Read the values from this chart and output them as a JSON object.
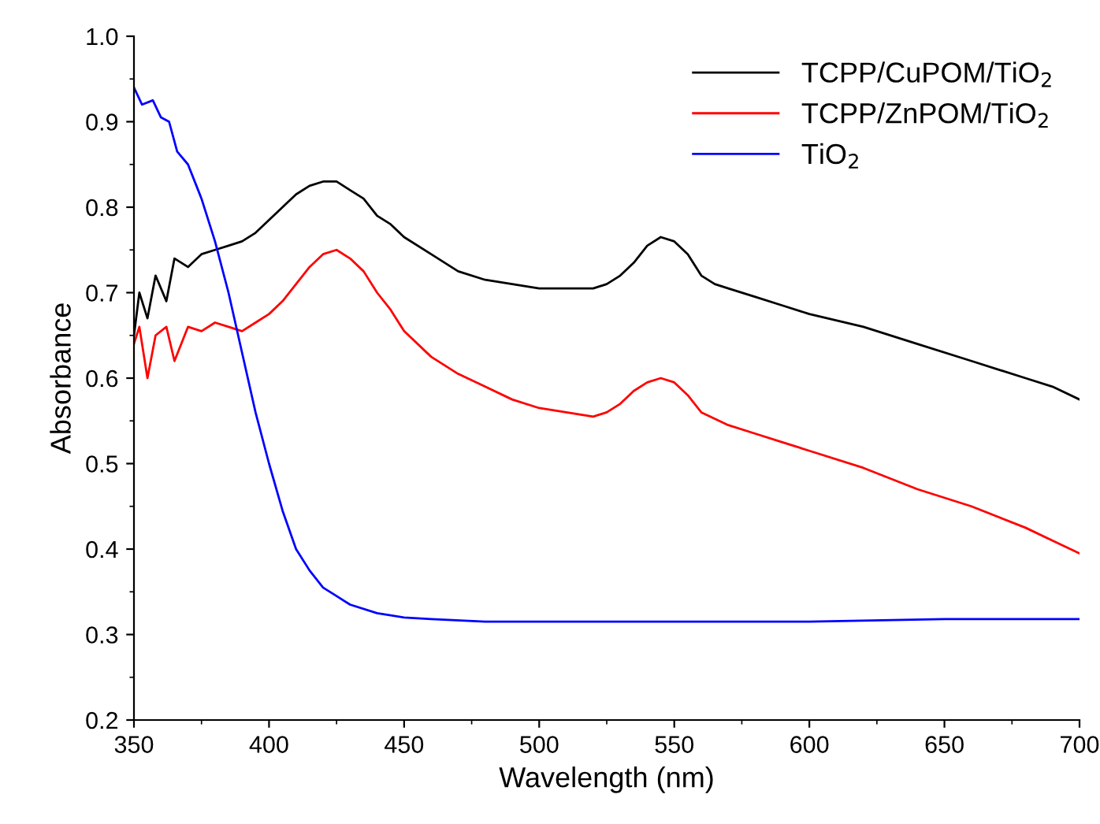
{
  "chart_data": {
    "type": "line",
    "xlabel": "Wavelength (nm)",
    "ylabel": "Absorbance",
    "xlim": [
      350,
      700
    ],
    "ylim": [
      0.2,
      1.0
    ],
    "xticks": [
      350,
      400,
      450,
      500,
      550,
      600,
      650,
      700
    ],
    "yticks": [
      0.2,
      0.3,
      0.4,
      0.5,
      0.6,
      0.7,
      0.8,
      0.9,
      {
        "value": 1.0,
        "label": "1.0"
      }
    ],
    "grid": false,
    "legend": "top right",
    "series": [
      {
        "name": "TCPP/CuPOM/TiO$_{2}$",
        "color": "#000000",
        "x": [
          350,
          352,
          355,
          358,
          362,
          365,
          370,
          375,
          380,
          385,
          390,
          395,
          400,
          405,
          410,
          415,
          420,
          425,
          430,
          435,
          440,
          445,
          450,
          460,
          470,
          480,
          490,
          500,
          510,
          520,
          525,
          530,
          535,
          540,
          545,
          550,
          555,
          560,
          565,
          570,
          580,
          590,
          600,
          620,
          640,
          660,
          680,
          690,
          700
        ],
        "values": [
          0.65,
          0.7,
          0.67,
          0.72,
          0.69,
          0.74,
          0.73,
          0.745,
          0.75,
          0.755,
          0.76,
          0.77,
          0.785,
          0.8,
          0.815,
          0.825,
          0.83,
          0.83,
          0.82,
          0.81,
          0.79,
          0.78,
          0.765,
          0.745,
          0.725,
          0.715,
          0.71,
          0.705,
          0.705,
          0.705,
          0.71,
          0.72,
          0.735,
          0.755,
          0.765,
          0.76,
          0.745,
          0.72,
          0.71,
          0.705,
          0.695,
          0.685,
          0.675,
          0.66,
          0.64,
          0.62,
          0.6,
          0.59,
          0.575
        ]
      },
      {
        "name": "TCPP/ZnPOM/TiO$_{2}$",
        "color": "#ff0000",
        "x": [
          350,
          352,
          355,
          358,
          362,
          365,
          370,
          375,
          380,
          385,
          390,
          395,
          400,
          405,
          410,
          415,
          420,
          425,
          430,
          435,
          440,
          445,
          450,
          460,
          470,
          480,
          490,
          500,
          510,
          520,
          525,
          530,
          535,
          540,
          545,
          550,
          555,
          560,
          570,
          580,
          590,
          600,
          620,
          640,
          660,
          680,
          690,
          700
        ],
        "values": [
          0.64,
          0.66,
          0.6,
          0.65,
          0.66,
          0.62,
          0.66,
          0.655,
          0.665,
          0.66,
          0.655,
          0.665,
          0.675,
          0.69,
          0.71,
          0.73,
          0.745,
          0.75,
          0.74,
          0.725,
          0.7,
          0.68,
          0.655,
          0.625,
          0.605,
          0.59,
          0.575,
          0.565,
          0.56,
          0.555,
          0.56,
          0.57,
          0.585,
          0.595,
          0.6,
          0.595,
          0.58,
          0.56,
          0.545,
          0.535,
          0.525,
          0.515,
          0.495,
          0.47,
          0.45,
          0.425,
          0.41,
          0.395
        ]
      },
      {
        "name": "TiO$_{2}$",
        "color": "#0000ff",
        "x": [
          350,
          353,
          357,
          360,
          363,
          366,
          370,
          375,
          380,
          385,
          390,
          395,
          400,
          405,
          410,
          415,
          420,
          425,
          430,
          440,
          450,
          460,
          480,
          500,
          550,
          600,
          650,
          700
        ],
        "values": [
          0.94,
          0.92,
          0.925,
          0.905,
          0.9,
          0.865,
          0.85,
          0.81,
          0.76,
          0.7,
          0.63,
          0.56,
          0.5,
          0.445,
          0.4,
          0.375,
          0.355,
          0.345,
          0.335,
          0.325,
          0.32,
          0.318,
          0.315,
          0.315,
          0.315,
          0.315,
          0.318,
          0.318
        ]
      }
    ]
  }
}
